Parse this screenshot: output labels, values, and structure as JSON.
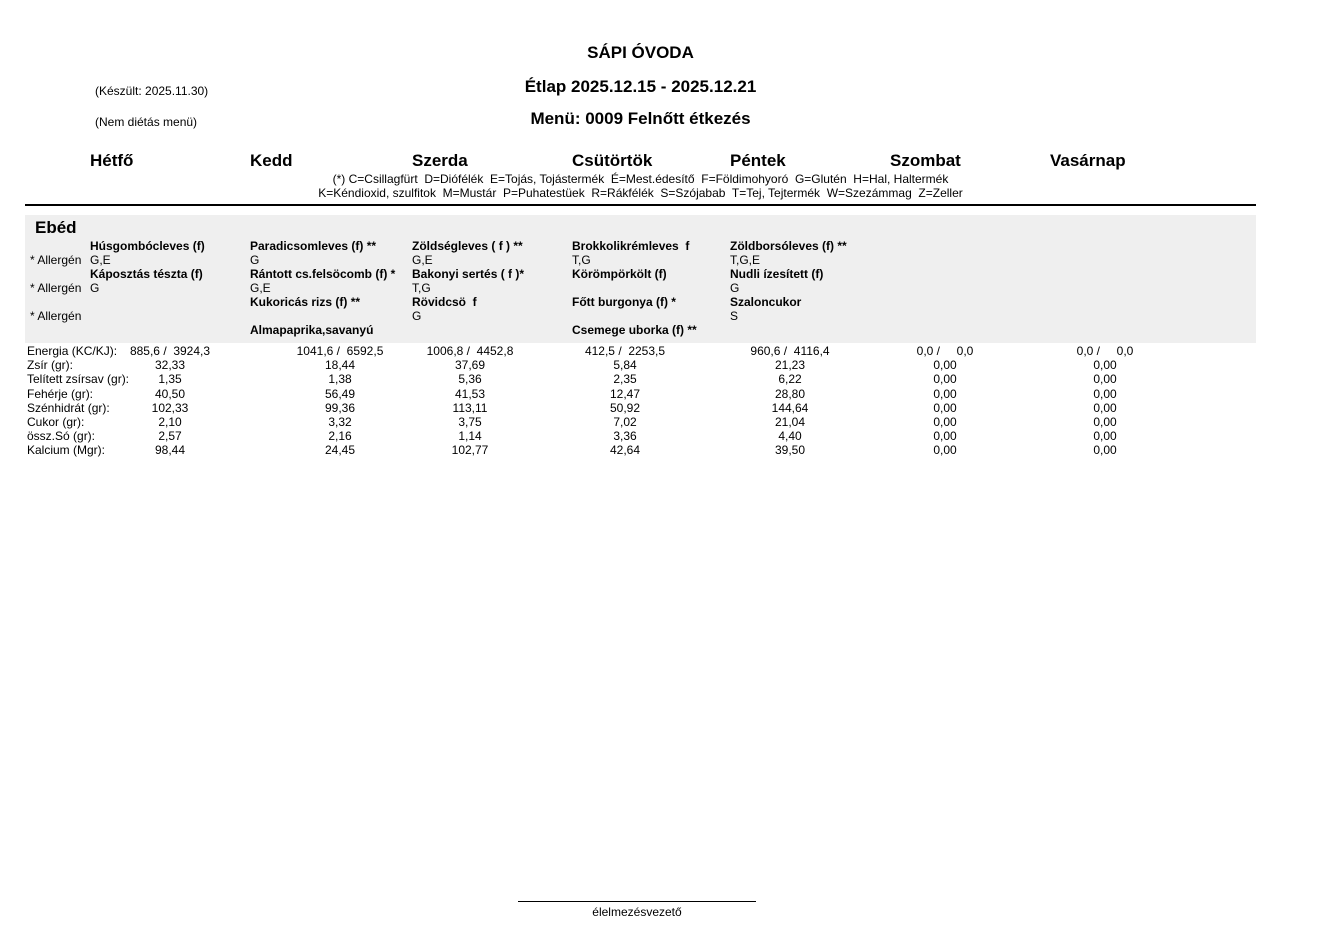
{
  "header": {
    "school": "SÁPI ÓVODA",
    "title": "Étlap 2025.12.15 - 2025.12.21",
    "menu": "Menü: 0009 Felnőtt étkezés",
    "created": "(Készült: 2025.11.30)",
    "diet_note": "(Nem diétás menü)"
  },
  "days": [
    "Hétfő",
    "Kedd",
    "Szerda",
    "Csütörtök",
    "Péntek",
    "Szombat",
    "Vasárnap"
  ],
  "legend": {
    "line1": "(*) C=Csillagfürt  D=Diófélék  E=Tojás, Tojástermék  É=Mest.édesítő  F=Földimohyoró  G=Glutén  H=Hal, Haltermék",
    "line2": "K=Kéndioxid, szulfitok  M=Mustár  P=Puhatestüek  R=Rákfélék  S=Szójabab  T=Tej, Tejtermék  W=Szezámmag  Z=Zeller"
  },
  "meal": {
    "title": "Ebéd",
    "allergen_label": "* Allergén",
    "columns": [
      {
        "rows": [
          "Húsgombócleves (f)",
          "G,E",
          "Káposztás tészta (f)",
          "G",
          "",
          "",
          ""
        ]
      },
      {
        "rows": [
          "Paradicsomleves (f) **",
          "G",
          "Rántott cs.felsöcomb (f) *",
          "G,E",
          "Kukoricás rizs (f) **",
          "",
          "Almapaprika,savanyú"
        ]
      },
      {
        "rows": [
          "Zöldségleves ( f ) **",
          "G,E",
          "Bakonyi sertés ( f )*",
          "T,G",
          "Rövidcsö  f",
          "G",
          ""
        ]
      },
      {
        "rows": [
          "Brokkolikrémleves  f",
          "T,G",
          "Körömpörkölt (f)",
          "",
          "Főtt burgonya (f) *",
          "",
          "Csemege uborka (f) **"
        ]
      },
      {
        "rows": [
          "Zöldborsóleves (f) **",
          "T,G,E",
          "Nudli ízesített (f)",
          "G",
          "Szaloncukor",
          "S",
          ""
        ]
      },
      {
        "rows": [
          "",
          "",
          "",
          "",
          "",
          "",
          ""
        ]
      },
      {
        "rows": [
          "",
          "",
          "",
          "",
          "",
          "",
          ""
        ]
      }
    ]
  },
  "nutrition": {
    "labels": [
      "Energia (KC/KJ):",
      "Zsír (gr):",
      "Telített zsírsav (gr):",
      "Fehérje (gr):",
      "Szénhidrát (gr):",
      "Cukor (gr):",
      "össz.Só (gr):",
      "Kalcium (Mgr):"
    ],
    "columns": [
      {
        "values": [
          "885,6 /  3924,3",
          "32,33",
          "1,35",
          "40,50",
          "102,33",
          "2,10",
          "2,57",
          "98,44"
        ]
      },
      {
        "values": [
          "1041,6 /  6592,5",
          "18,44",
          "1,38",
          "56,49",
          "99,36",
          "3,32",
          "2,16",
          "24,45"
        ]
      },
      {
        "values": [
          "1006,8 /  4452,8",
          "37,69",
          "5,36",
          "41,53",
          "113,11",
          "3,75",
          "1,14",
          "102,77"
        ]
      },
      {
        "values": [
          "412,5 /  2253,5",
          "5,84",
          "2,35",
          "12,47",
          "50,92",
          "7,02",
          "3,36",
          "42,64"
        ]
      },
      {
        "values": [
          "960,6 /  4116,4",
          "21,23",
          "6,22",
          "28,80",
          "144,64",
          "21,04",
          "4,40",
          "39,50"
        ]
      },
      {
        "values": [
          "0,0 /     0,0",
          "0,00",
          "0,00",
          "0,00",
          "0,00",
          "0,00",
          "0,00",
          "0,00"
        ]
      },
      {
        "values": [
          "0,0 /     0,0",
          "0,00",
          "0,00",
          "0,00",
          "0,00",
          "0,00",
          "0,00",
          "0,00"
        ]
      }
    ]
  },
  "footer": {
    "signature": "élelmezésvezető"
  },
  "colors": {
    "meal_band_bg": "#efefef",
    "text": "#000000",
    "divider": "#000000"
  }
}
